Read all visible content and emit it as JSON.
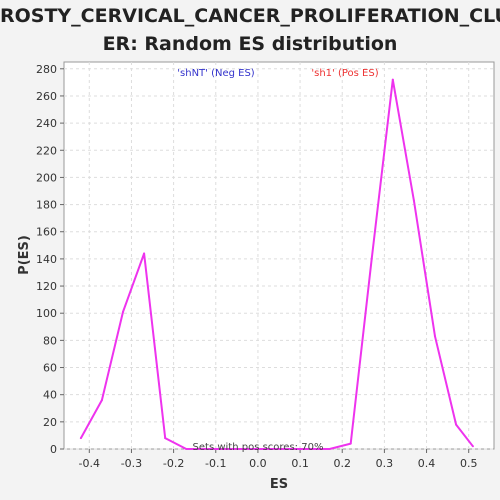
{
  "chart_data": {
    "type": "line",
    "title_lines": [
      "ROSTY_CERVICAL_CANCER_PROLIFERATION_CLUST",
      "ER: Random ES distribution"
    ],
    "xlabel": "ES",
    "ylabel": "P(ES)",
    "xlim": [
      -0.46,
      0.56
    ],
    "ylim": [
      0,
      285
    ],
    "xticks": [
      -0.4,
      -0.3,
      -0.2,
      -0.1,
      0.0,
      0.1,
      0.2,
      0.3,
      0.4,
      0.5
    ],
    "xtick_labels": [
      "-0.4",
      "-0.3",
      "-0.2",
      "-0.1",
      "0.0",
      "0.1",
      "0.2",
      "0.3",
      "0.4",
      "0.5"
    ],
    "yticks": [
      0,
      20,
      40,
      60,
      80,
      100,
      120,
      140,
      160,
      180,
      200,
      220,
      240,
      260,
      280
    ],
    "ytick_labels": [
      "0",
      "20",
      "40",
      "60",
      "80",
      "100",
      "120",
      "140",
      "160",
      "180",
      "200",
      "220",
      "240",
      "260",
      "280"
    ],
    "grid": true,
    "annotations": {
      "neg": "'shNT' (Neg ES)",
      "pos": "'sh1' (Pos ES)",
      "footer": "Sets with pos scores: 70%"
    },
    "colors": {
      "line": "#ee33ee",
      "neg_label": "#3333cc",
      "pos_label": "#ee3333",
      "grid": "#dddddd",
      "plot_bg": "#ffffff"
    },
    "series": [
      {
        "x": [
          -0.42,
          -0.37,
          -0.32,
          -0.27,
          -0.22,
          -0.17,
          -0.12,
          -0.07,
          -0.02,
          0.03,
          0.08,
          0.12,
          0.17,
          0.22,
          0.27,
          0.32,
          0.37,
          0.42,
          0.47,
          0.51
        ],
        "y": [
          8,
          36,
          101,
          144,
          8,
          0,
          0,
          0,
          0,
          0,
          0,
          0,
          0,
          4,
          140,
          272,
          183,
          83,
          18,
          2
        ]
      }
    ]
  }
}
